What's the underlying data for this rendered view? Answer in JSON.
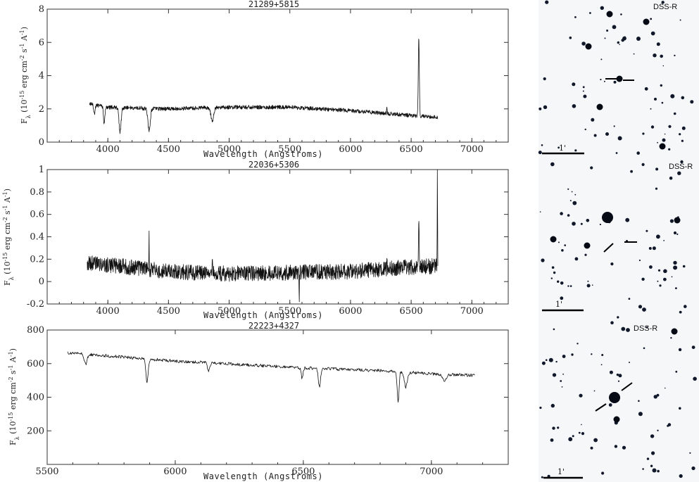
{
  "chart_data": [
    {
      "type": "line",
      "title": "21289+5815",
      "xlabel": "Wavelength (Angstroms)",
      "ylabel": "F_λ (10^-15 erg cm^-2 s^-1 A^-1)",
      "xlim": [
        3500,
        7300
      ],
      "ylim": [
        0,
        8
      ],
      "xticks": [
        4000,
        4500,
        5000,
        5500,
        6000,
        6500,
        7000
      ],
      "yticks": [
        0,
        2,
        4,
        6,
        8
      ],
      "continuum": [
        [
          3850,
          2.3
        ],
        [
          4000,
          2.1
        ],
        [
          4500,
          2.0
        ],
        [
          5000,
          2.1
        ],
        [
          5500,
          2.1
        ],
        [
          6000,
          1.9
        ],
        [
          6500,
          1.6
        ],
        [
          6720,
          1.5
        ]
      ],
      "features": [
        [
          3889,
          -0.6,
          8
        ],
        [
          3970,
          -1.0,
          8
        ],
        [
          4101,
          -1.5,
          12
        ],
        [
          4340,
          -1.3,
          14
        ],
        [
          4861,
          -0.8,
          16
        ],
        [
          6300,
          0.4,
          3
        ],
        [
          6563,
          4.7,
          6
        ]
      ],
      "noise": 0.12,
      "range": [
        3850,
        6720
      ],
      "seed": 3
    },
    {
      "type": "line",
      "title": "22036+5306",
      "xlabel": "Wavelength (Angstroms)",
      "ylabel": "F_λ (10^-15 erg cm^-2 s^-1 A^-1)",
      "xlim": [
        3500,
        7300
      ],
      "ylim": [
        -0.2,
        1
      ],
      "xticks": [
        4000,
        4500,
        5000,
        5500,
        6000,
        6500,
        7000
      ],
      "yticks": [
        -0.2,
        0,
        0.2,
        0.4,
        0.6,
        0.8,
        1
      ],
      "continuum": [
        [
          3830,
          0.17
        ],
        [
          4000,
          0.15
        ],
        [
          4500,
          0.09
        ],
        [
          5000,
          0.07
        ],
        [
          5500,
          0.08
        ],
        [
          6000,
          0.09
        ],
        [
          6500,
          0.13
        ],
        [
          6720,
          0.14
        ]
      ],
      "features": [
        [
          4340,
          0.3,
          2
        ],
        [
          4861,
          0.23,
          2
        ],
        [
          5577,
          -0.25,
          2
        ],
        [
          6300,
          0.1,
          2
        ],
        [
          6563,
          0.38,
          4
        ],
        [
          6716,
          0.9,
          2
        ]
      ],
      "noise": 0.07,
      "range": [
        3830,
        6720
      ],
      "seed": 7
    },
    {
      "type": "line",
      "title": "22223+4327",
      "xlabel": "Wavelength (Angstroms)",
      "ylabel": "F_λ (10^-15 erg cm^-2 s^-1 A^-1)",
      "xlim": [
        5500,
        7300
      ],
      "ylim": [
        0,
        800
      ],
      "xticks": [
        5500,
        6000,
        6500,
        7000
      ],
      "yticks": [
        200,
        400,
        600,
        800
      ],
      "continuum": [
        [
          5580,
          665
        ],
        [
          5700,
          650
        ],
        [
          6000,
          615
        ],
        [
          6500,
          575
        ],
        [
          6800,
          558
        ],
        [
          7000,
          540
        ],
        [
          7170,
          530
        ]
      ],
      "features": [
        [
          5650,
          -60,
          8
        ],
        [
          5890,
          -140,
          6
        ],
        [
          6130,
          -50,
          6
        ],
        [
          6495,
          -60,
          5
        ],
        [
          6563,
          -110,
          6
        ],
        [
          6870,
          -180,
          5
        ],
        [
          6900,
          -90,
          8
        ],
        [
          7050,
          -40,
          10
        ]
      ],
      "noise": 9,
      "range": [
        5580,
        7170
      ],
      "seed": 11
    }
  ],
  "images": [
    {
      "label": "DSS-R",
      "scale_label": "1'"
    },
    {
      "label": "DSS-R",
      "scale_label": "1'"
    },
    {
      "label": "DSS-R",
      "scale_label": "1'"
    }
  ]
}
